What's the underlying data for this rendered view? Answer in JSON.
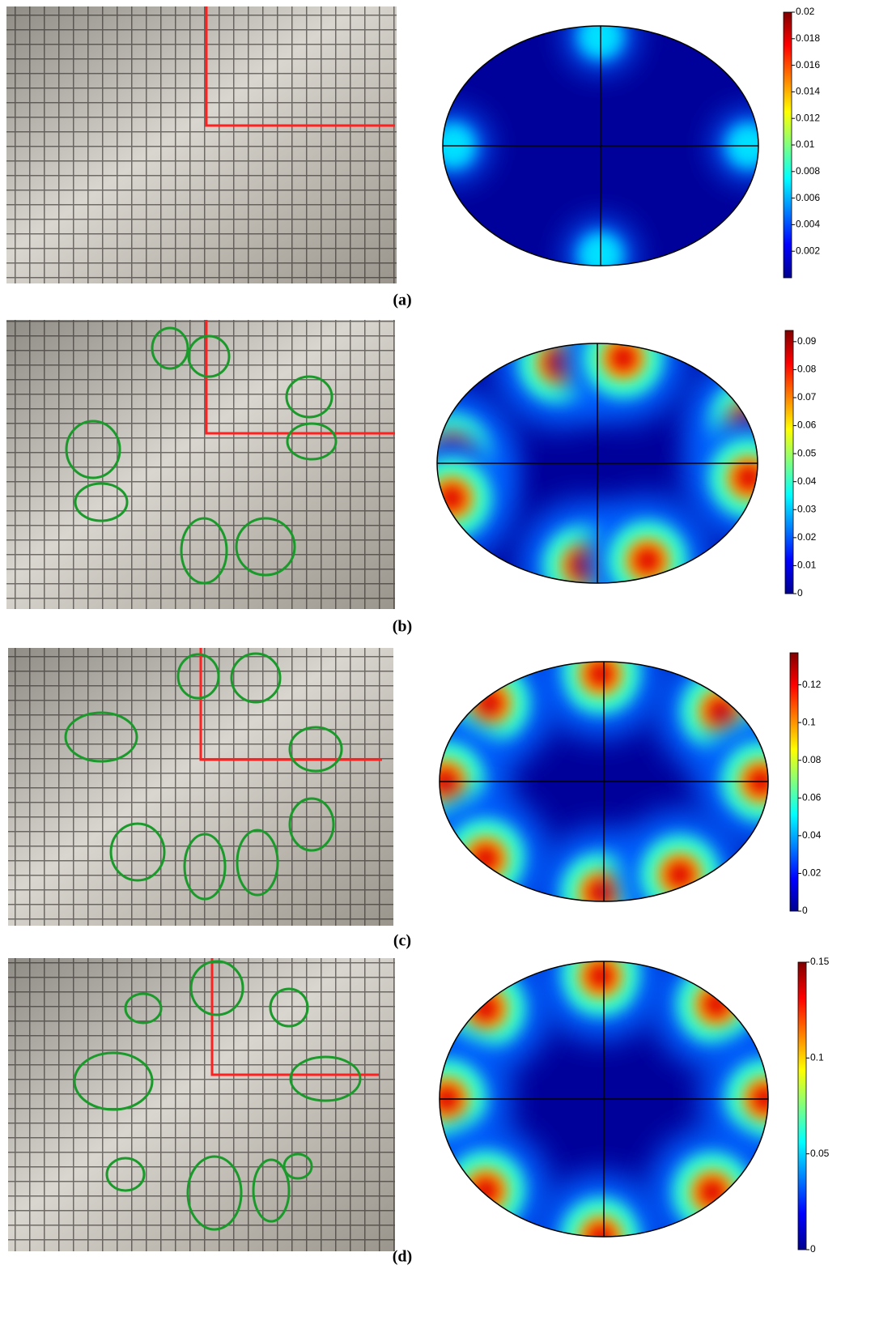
{
  "panels": [
    {
      "label": "(a)",
      "colorbar": {
        "range": [
          0,
          0.02
        ],
        "ticks": [
          0.002,
          0.004,
          0.006,
          0.008,
          0.01,
          0.012,
          0.014,
          0.016,
          0.018,
          0.02
        ]
      }
    },
    {
      "label": "(b)",
      "colorbar": {
        "range": [
          0,
          0.094
        ],
        "ticks": [
          0,
          0.01,
          0.02,
          0.03,
          0.04,
          0.05,
          0.06,
          0.07,
          0.08,
          0.09
        ]
      }
    },
    {
      "label": "(c)",
      "colorbar": {
        "range": [
          0,
          0.137
        ],
        "ticks": [
          0,
          0.02,
          0.04,
          0.06,
          0.08,
          0.1,
          0.12
        ]
      }
    },
    {
      "label": "(d)",
      "colorbar": {
        "range": [
          0,
          0.15
        ],
        "ticks": [
          0,
          0.05,
          0.1,
          0.15
        ]
      }
    }
  ]
}
